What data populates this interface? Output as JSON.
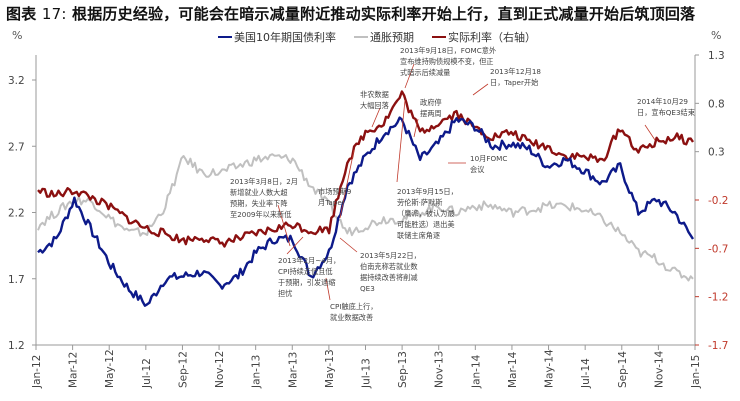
{
  "title": {
    "prefix": "图表",
    "number": "17:",
    "text": "根据历史经验，可能会在暗示减量附近推动实际利率开始上行，直到正式减量开始后筑顶回落"
  },
  "axes": {
    "left_unit": "%",
    "right_unit": "%"
  },
  "legend": [
    {
      "label": "美国10年期国债利率",
      "color": "#0d1a8a"
    },
    {
      "label": "通胀预期",
      "color": "#c0c0c0"
    },
    {
      "label": "实际利率（右轴）",
      "color": "#8b1010"
    }
  ],
  "annotations": [
    {
      "id": "a1",
      "lines": [
        "2013年9月18日，FOMC意外",
        "宣布维持购债规模不变，但正",
        "式暗示后续减量"
      ]
    },
    {
      "id": "a2",
      "lines": [
        "2013年12月18",
        "日，Taper开始"
      ]
    },
    {
      "id": "a3",
      "lines": [
        "非农数据",
        "大幅回落"
      ]
    },
    {
      "id": "a4",
      "lines": [
        "政府停",
        "摆两周"
      ]
    },
    {
      "id": "a5",
      "lines": [
        "2014年10月29",
        "日，宣布QE3结束"
      ]
    },
    {
      "id": "a6",
      "lines": [
        "2013年3月8日，2月",
        "新增就业人数大超",
        "预期，失业率下降",
        "至2009年以来新低"
      ]
    },
    {
      "id": "a7",
      "lines": [
        "市场预期9",
        "月Taper"
      ]
    },
    {
      "id": "a8",
      "lines": [
        "2013年9月15日，",
        "劳伦斯·萨默斯",
        "（鹰派，被认为最",
        "可能胜选）退出美",
        "联储主席角逐"
      ]
    },
    {
      "id": "a9",
      "lines": [
        "10月FOMC",
        "会议"
      ]
    },
    {
      "id": "a10",
      "lines": [
        "2013年5月22日，",
        "伯南克称若就业数",
        "据持续改善将削减",
        "QE3"
      ]
    },
    {
      "id": "a11",
      "lines": [
        "2013年2月~4月，",
        "CPI持续走低且低",
        "于预期，引发通缩",
        "担忧"
      ]
    },
    {
      "id": "a12",
      "lines": [
        "CPI触底上行，",
        "就业数据改善"
      ]
    }
  ],
  "chart_data": {
    "type": "line",
    "title": "图表 17: 根据历史经验，可能会在暗示减量附近推动实际利率开始上行，直到正式减量开始后筑顶回落",
    "xlabel": "",
    "ylabel": "%",
    "ylabel_right": "%",
    "x_tick_labels": [
      "Jan-12",
      "Mar-12",
      "May-12",
      "Jul-12",
      "Sep-12",
      "Nov-12",
      "Jan-13",
      "Mar-13",
      "May-13",
      "Jul-13",
      "Sep-13",
      "Nov-13",
      "Jan-14",
      "Mar-14",
      "May-14",
      "Jul-14",
      "Sep-14",
      "Nov-14",
      "Jan-15"
    ],
    "y_left_ticks": [
      "1.2",
      "1.7",
      "2.2",
      "2.7",
      "3.2"
    ],
    "y_right_ticks": [
      "-1.7",
      "-1.2",
      "-0.7",
      "-0.2",
      "0.3",
      "0.8",
      "1.3"
    ],
    "ylim_left": [
      1.2,
      3.5
    ],
    "ylim_right": [
      -1.7,
      1.3
    ],
    "grid": false,
    "legend_position": "top",
    "x": [
      "Jan-12",
      "Feb-12",
      "Mar-12",
      "Apr-12",
      "May-12",
      "Jun-12",
      "Jul-12",
      "Aug-12",
      "Sep-12",
      "Oct-12",
      "Nov-12",
      "Dec-12",
      "Jan-13",
      "Feb-13",
      "Mar-13",
      "Apr-13",
      "May-13",
      "Jun-13",
      "Jul-13",
      "Aug-13",
      "Sep-13",
      "Oct-13",
      "Nov-13",
      "Dec-13",
      "Jan-14",
      "Feb-14",
      "Mar-14",
      "Apr-14",
      "May-14",
      "Jun-14",
      "Jul-14",
      "Aug-14",
      "Sep-14",
      "Oct-14",
      "Nov-14",
      "Dec-14",
      "Jan-15"
    ],
    "series": [
      {
        "name": "美国10年期国债利率",
        "axis": "left",
        "color": "#0d1a8a",
        "values": [
          1.9,
          2.0,
          2.3,
          2.05,
          1.8,
          1.62,
          1.5,
          1.7,
          1.72,
          1.75,
          1.65,
          1.72,
          1.9,
          2.0,
          2.0,
          1.72,
          1.9,
          2.4,
          2.62,
          2.8,
          2.9,
          2.6,
          2.72,
          2.9,
          2.85,
          2.7,
          2.72,
          2.68,
          2.55,
          2.6,
          2.52,
          2.42,
          2.55,
          2.2,
          2.3,
          2.2,
          2.0
        ]
      },
      {
        "name": "通胀预期",
        "axis": "left",
        "color": "#c0c0c0",
        "values": [
          2.1,
          2.2,
          2.3,
          2.28,
          2.15,
          2.05,
          2.05,
          2.25,
          2.62,
          2.5,
          2.5,
          2.55,
          2.6,
          2.62,
          2.6,
          2.4,
          2.25,
          2.05,
          2.1,
          2.15,
          2.15,
          2.2,
          2.25,
          2.2,
          2.25,
          2.25,
          2.2,
          2.22,
          2.25,
          2.25,
          2.22,
          2.15,
          2.05,
          1.9,
          1.85,
          1.75,
          1.7
        ]
      },
      {
        "name": "实际利率（右轴）",
        "axis": "right",
        "color": "#8b1010",
        "values": [
          -0.1,
          -0.15,
          -0.1,
          -0.18,
          -0.28,
          -0.4,
          -0.5,
          -0.55,
          -0.62,
          -0.58,
          -0.65,
          -0.6,
          -0.55,
          -0.5,
          -0.45,
          -0.52,
          -0.5,
          0.2,
          0.5,
          0.6,
          0.9,
          0.5,
          0.6,
          0.7,
          0.55,
          0.45,
          0.5,
          0.4,
          0.35,
          0.25,
          0.25,
          0.2,
          0.55,
          0.3,
          0.4,
          0.45,
          0.4
        ]
      }
    ]
  }
}
